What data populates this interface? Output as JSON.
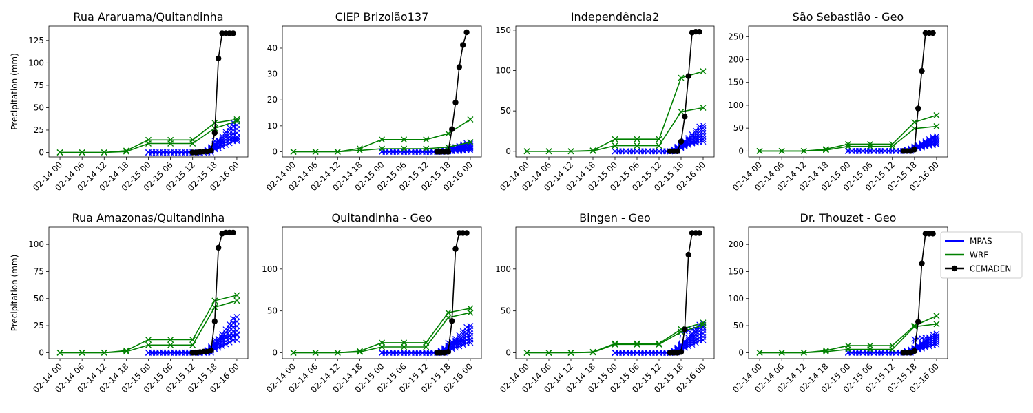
{
  "figure": {
    "ylabel": "Precipitation (mm)",
    "x_tick_labels": [
      "02-14 00",
      "02-14 06",
      "02-14 12",
      "02-14 18",
      "02-15 00",
      "02-15 06",
      "02-15 12",
      "02-15 18",
      "02-16 00"
    ],
    "legend": [
      {
        "label": "MPAS",
        "color": "#0000ff",
        "marker": "none"
      },
      {
        "label": "WRF",
        "color": "#008000",
        "marker": "none"
      },
      {
        "label": "CEMADEN",
        "color": "#000000",
        "marker": "circle"
      }
    ],
    "legend_placement": "right of last panel"
  },
  "chart_data": [
    {
      "type": "line",
      "title": "Rua Araruama/Quitandinha",
      "ylabel": "Precipitation (mm)",
      "xlim": [
        "02-13 21",
        "02-16 03"
      ],
      "ylim": [
        -5,
        141
      ],
      "yticks": [
        0,
        25,
        50,
        75,
        100,
        125
      ],
      "x_ticks": [
        "02-14 00",
        "02-14 06",
        "02-14 12",
        "02-14 18",
        "02-15 00",
        "02-15 06",
        "02-15 12",
        "02-15 18",
        "02-16 00"
      ],
      "wrf": {
        "x": [
          "02-14 00",
          "02-14 06",
          "02-14 12",
          "02-14 18",
          "02-15 00",
          "02-15 06",
          "02-15 12",
          "02-15 18",
          "02-16 00"
        ],
        "upper": [
          0,
          0,
          0,
          2,
          14,
          14,
          14,
          33,
          37
        ],
        "lower": [
          0,
          0,
          0,
          1,
          10,
          10,
          10,
          27,
          35
        ]
      },
      "mpas": {
        "x_start": "02-15 00",
        "x_end": "02-16 00",
        "start": [
          0,
          0
        ],
        "end": [
          13,
          35
        ],
        "outliers": [
          [
            13,
            15
          ]
        ]
      },
      "cemaden": {
        "x": [
          "02-15 12",
          "02-15 13",
          "02-15 14",
          "02-15 15",
          "02-15 16",
          "02-15 17",
          "02-15 18",
          "02-15 19",
          "02-15 20",
          "02-15 21",
          "02-15 22",
          "02-15 23"
        ],
        "y": [
          0,
          0,
          0.5,
          1,
          1,
          2,
          22,
          105,
          133,
          133,
          133,
          133
        ]
      }
    },
    {
      "type": "line",
      "title": "CIEP Brizolão137",
      "ylabel": "",
      "xlim": [
        "02-13 21",
        "02-16 03"
      ],
      "ylim": [
        -2,
        48.5
      ],
      "yticks": [
        0,
        10,
        20,
        30,
        40
      ],
      "x_ticks": [
        "02-14 00",
        "02-14 06",
        "02-14 12",
        "02-14 18",
        "02-15 00",
        "02-15 06",
        "02-15 12",
        "02-15 18",
        "02-16 00"
      ],
      "wrf": {
        "x": [
          "02-14 00",
          "02-14 06",
          "02-14 12",
          "02-14 18",
          "02-15 00",
          "02-15 06",
          "02-15 12",
          "02-15 18",
          "02-16 00"
        ],
        "upper": [
          0,
          0,
          0,
          1.3,
          4.7,
          4.7,
          4.7,
          7,
          12.5
        ],
        "lower": [
          0,
          0,
          0,
          0.5,
          1.2,
          1.2,
          1.2,
          1.8,
          3.7
        ]
      },
      "mpas": {
        "x_start": "02-15 00",
        "x_end": "02-16 00",
        "start": [
          0,
          0
        ],
        "end": [
          0.5,
          3.5
        ],
        "outliers": [
          [
            0.5,
            1.5
          ]
        ]
      },
      "cemaden": {
        "x": [
          "02-15 15",
          "02-15 16",
          "02-15 17",
          "02-15 18",
          "02-15 19",
          "02-15 20",
          "02-15 21",
          "02-15 22",
          "02-15 23"
        ],
        "y": [
          0,
          0,
          0,
          0,
          8.7,
          19,
          32.7,
          41.2,
          46.1
        ]
      }
    },
    {
      "type": "line",
      "title": "Independência2",
      "ylabel": "",
      "xlim": [
        "02-13 21",
        "02-16 03"
      ],
      "ylim": [
        -7,
        155
      ],
      "yticks": [
        0,
        50,
        100,
        150
      ],
      "x_ticks": [
        "02-14 00",
        "02-14 06",
        "02-14 12",
        "02-14 18",
        "02-15 00",
        "02-15 06",
        "02-15 12",
        "02-15 18",
        "02-16 00"
      ],
      "wrf": {
        "x": [
          "02-14 00",
          "02-14 06",
          "02-14 12",
          "02-14 18",
          "02-15 00",
          "02-15 06",
          "02-15 12",
          "02-15 18",
          "02-16 00"
        ],
        "upper": [
          0,
          0,
          0,
          1,
          15,
          15,
          15,
          91,
          99
        ],
        "lower": [
          0,
          0,
          0,
          0.5,
          7,
          7,
          7,
          49,
          54
        ]
      },
      "mpas": {
        "x_start": "02-15 00",
        "x_end": "02-16 00",
        "start": [
          0,
          0
        ],
        "end": [
          15,
          32
        ],
        "outliers": [
          [
            8,
            12
          ]
        ]
      },
      "cemaden": {
        "x": [
          "02-15 15",
          "02-15 16",
          "02-15 17",
          "02-15 18",
          "02-15 19",
          "02-15 20",
          "02-15 21",
          "02-15 22",
          "02-15 23"
        ],
        "y": [
          0,
          0,
          0,
          12,
          43,
          93,
          147,
          148,
          148
        ]
      }
    },
    {
      "type": "line",
      "title": "São Sebastião - Geo",
      "ylabel": "",
      "xlim": [
        "02-13 21",
        "02-16 03"
      ],
      "ylim": [
        -13,
        273
      ],
      "yticks": [
        0,
        50,
        100,
        150,
        200,
        250
      ],
      "x_ticks": [
        "02-14 00",
        "02-14 06",
        "02-14 12",
        "02-14 18",
        "02-15 00",
        "02-15 06",
        "02-15 12",
        "02-15 18",
        "02-16 00"
      ],
      "wrf": {
        "x": [
          "02-14 00",
          "02-14 06",
          "02-14 12",
          "02-14 18",
          "02-15 00",
          "02-15 06",
          "02-15 12",
          "02-15 18",
          "02-16 00"
        ],
        "upper": [
          0,
          0,
          0,
          4,
          15,
          15,
          15,
          63,
          78
        ],
        "lower": [
          0,
          0,
          0,
          2,
          10,
          10,
          10,
          49,
          54
        ]
      },
      "mpas": {
        "x_start": "02-15 00",
        "x_end": "02-16 00",
        "start": [
          0,
          0
        ],
        "end": [
          15,
          32
        ],
        "outliers": [
          [
            10,
            14
          ]
        ]
      },
      "cemaden": {
        "x": [
          "02-15 15",
          "02-15 16",
          "02-15 17",
          "02-15 18",
          "02-15 19",
          "02-15 20",
          "02-15 21",
          "02-15 22",
          "02-15 23"
        ],
        "y": [
          0,
          0,
          0,
          3,
          93,
          175,
          258,
          258,
          258
        ]
      }
    },
    {
      "type": "line",
      "title": "Rua Amazonas/Quitandinha",
      "ylabel": "Precipitation (mm)",
      "xlim": [
        "02-13 21",
        "02-16 03"
      ],
      "ylim": [
        -5.5,
        116
      ],
      "yticks": [
        0,
        25,
        50,
        75,
        100
      ],
      "x_ticks": [
        "02-14 00",
        "02-14 06",
        "02-14 12",
        "02-14 18",
        "02-15 00",
        "02-15 06",
        "02-15 12",
        "02-15 18",
        "02-16 00"
      ],
      "wrf": {
        "x": [
          "02-14 00",
          "02-14 06",
          "02-14 12",
          "02-14 18",
          "02-15 00",
          "02-15 06",
          "02-15 12",
          "02-15 18",
          "02-16 00"
        ],
        "upper": [
          0,
          0,
          0,
          2,
          12,
          12,
          12,
          48,
          53
        ],
        "lower": [
          0,
          0,
          0,
          1,
          7,
          7,
          7,
          42,
          48
        ]
      },
      "mpas": {
        "x_start": "02-15 00",
        "x_end": "02-16 00",
        "start": [
          0,
          0
        ],
        "end": [
          12,
          33
        ],
        "outliers": [
          [
            12,
            17
          ]
        ]
      },
      "cemaden": {
        "x": [
          "02-15 12",
          "02-15 13",
          "02-15 14",
          "02-15 15",
          "02-15 16",
          "02-15 17",
          "02-15 18",
          "02-15 19",
          "02-15 20",
          "02-15 21",
          "02-15 22",
          "02-15 23"
        ],
        "y": [
          0,
          0,
          0.5,
          1,
          1,
          2,
          29,
          97,
          110,
          111,
          111,
          111
        ]
      }
    },
    {
      "type": "line",
      "title": "Quitandinha - Geo",
      "ylabel": "",
      "xlim": [
        "02-13 21",
        "02-16 03"
      ],
      "ylim": [
        -7,
        150
      ],
      "yticks": [
        0,
        50,
        100
      ],
      "x_ticks": [
        "02-14 00",
        "02-14 06",
        "02-14 12",
        "02-14 18",
        "02-15 00",
        "02-15 06",
        "02-15 12",
        "02-15 18",
        "02-16 00"
      ],
      "wrf": {
        "x": [
          "02-14 00",
          "02-14 06",
          "02-14 12",
          "02-14 18",
          "02-15 00",
          "02-15 06",
          "02-15 12",
          "02-15 18",
          "02-16 00"
        ],
        "upper": [
          0,
          0,
          0,
          2,
          12,
          12,
          12,
          48,
          53
        ],
        "lower": [
          0,
          0,
          0,
          1,
          7,
          7,
          7,
          42,
          48
        ]
      },
      "mpas": {
        "x_start": "02-15 00",
        "x_end": "02-16 00",
        "start": [
          0,
          0
        ],
        "end": [
          12,
          32
        ],
        "outliers": [
          [
            12,
            16
          ]
        ]
      },
      "cemaden": {
        "x": [
          "02-15 15",
          "02-15 16",
          "02-15 17",
          "02-15 18",
          "02-15 19",
          "02-15 20",
          "02-15 21",
          "02-15 22",
          "02-15 23"
        ],
        "y": [
          0,
          0,
          0,
          1,
          38,
          124,
          143,
          143,
          143
        ]
      }
    },
    {
      "type": "line",
      "title": "Bingen - Geo",
      "ylabel": "",
      "xlim": [
        "02-13 21",
        "02-16 03"
      ],
      "ylim": [
        -7,
        150
      ],
      "yticks": [
        0,
        50,
        100
      ],
      "x_ticks": [
        "02-14 00",
        "02-14 06",
        "02-14 12",
        "02-14 18",
        "02-15 00",
        "02-15 06",
        "02-15 12",
        "02-15 18",
        "02-16 00"
      ],
      "wrf": {
        "x": [
          "02-14 00",
          "02-14 06",
          "02-14 12",
          "02-14 18",
          "02-15 00",
          "02-15 06",
          "02-15 12",
          "02-15 18",
          "02-16 00"
        ],
        "upper": [
          0,
          0,
          0,
          1,
          11,
          11,
          11,
          28,
          36
        ],
        "lower": [
          0,
          0,
          0,
          0.5,
          10,
          10,
          10,
          25,
          33
        ]
      },
      "mpas": {
        "x_start": "02-15 00",
        "x_end": "02-16 00",
        "start": [
          0,
          0
        ],
        "end": [
          15,
          35
        ],
        "outliers": [
          [
            25,
            30
          ]
        ]
      },
      "cemaden": {
        "x": [
          "02-15 15",
          "02-15 16",
          "02-15 17",
          "02-15 18",
          "02-15 19",
          "02-15 20",
          "02-15 21",
          "02-15 22",
          "02-15 23"
        ],
        "y": [
          0,
          0,
          0,
          1,
          28,
          117,
          143,
          143,
          143
        ]
      }
    },
    {
      "type": "line",
      "title": "Dr. Thouzet - Geo",
      "ylabel": "",
      "xlim": [
        "02-13 21",
        "02-16 03"
      ],
      "ylim": [
        -11,
        232
      ],
      "yticks": [
        0,
        50,
        100,
        150,
        200
      ],
      "x_ticks": [
        "02-14 00",
        "02-14 06",
        "02-14 12",
        "02-14 18",
        "02-15 00",
        "02-15 06",
        "02-15 12",
        "02-15 18",
        "02-16 00"
      ],
      "wrf": {
        "x": [
          "02-14 00",
          "02-14 06",
          "02-14 12",
          "02-14 18",
          "02-15 00",
          "02-15 06",
          "02-15 12",
          "02-15 18",
          "02-16 00"
        ],
        "upper": [
          0,
          0,
          0,
          4,
          13,
          13,
          13,
          50,
          68
        ],
        "lower": [
          0,
          0,
          0,
          2,
          6,
          6,
          6,
          48,
          53
        ]
      },
      "mpas": {
        "x_start": "02-15 00",
        "x_end": "02-16 00",
        "start": [
          0,
          0
        ],
        "end": [
          15,
          35
        ],
        "outliers": [
          [
            25,
            30
          ]
        ]
      },
      "cemaden": {
        "x": [
          "02-15 15",
          "02-15 16",
          "02-15 17",
          "02-15 18",
          "02-15 19",
          "02-15 20",
          "02-15 21",
          "02-15 22",
          "02-15 23"
        ],
        "y": [
          0,
          0,
          0,
          3,
          57,
          165,
          220,
          220,
          220
        ]
      }
    }
  ]
}
